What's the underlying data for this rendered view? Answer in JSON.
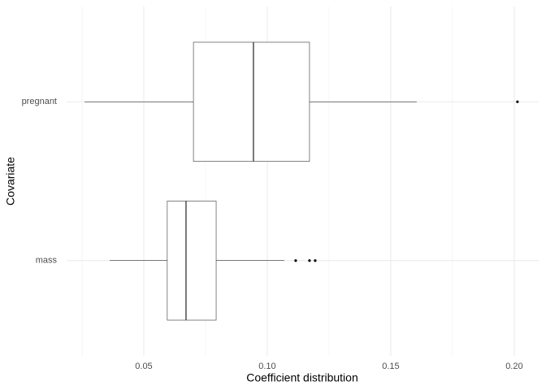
{
  "chart_data": {
    "type": "boxplot",
    "orientation": "horizontal",
    "xlabel": "Coefficient distribution",
    "ylabel": "Covariate",
    "categories": [
      "pregnant",
      "mass"
    ],
    "boxes": [
      {
        "low": 0.026,
        "q1": 0.0701,
        "median": 0.0944,
        "q3": 0.1171,
        "high": 0.1605,
        "outliers": [
          0.2013
        ]
      },
      {
        "low": 0.0362,
        "q1": 0.0595,
        "median": 0.0671,
        "q3": 0.0793,
        "high": 0.1069,
        "outliers": [
          0.1115,
          0.1171,
          0.1194
        ]
      }
    ],
    "xlim": [
      0.01875,
      0.2099
    ],
    "xticks": [
      0.05,
      {
        "value": 0.1,
        "label": "0.10"
      },
      0.15,
      {
        "value": 0.2,
        "label": "0.20"
      }
    ],
    "xminor": [
      0.025,
      0.075,
      0.125,
      0.175
    ],
    "grid": true
  }
}
